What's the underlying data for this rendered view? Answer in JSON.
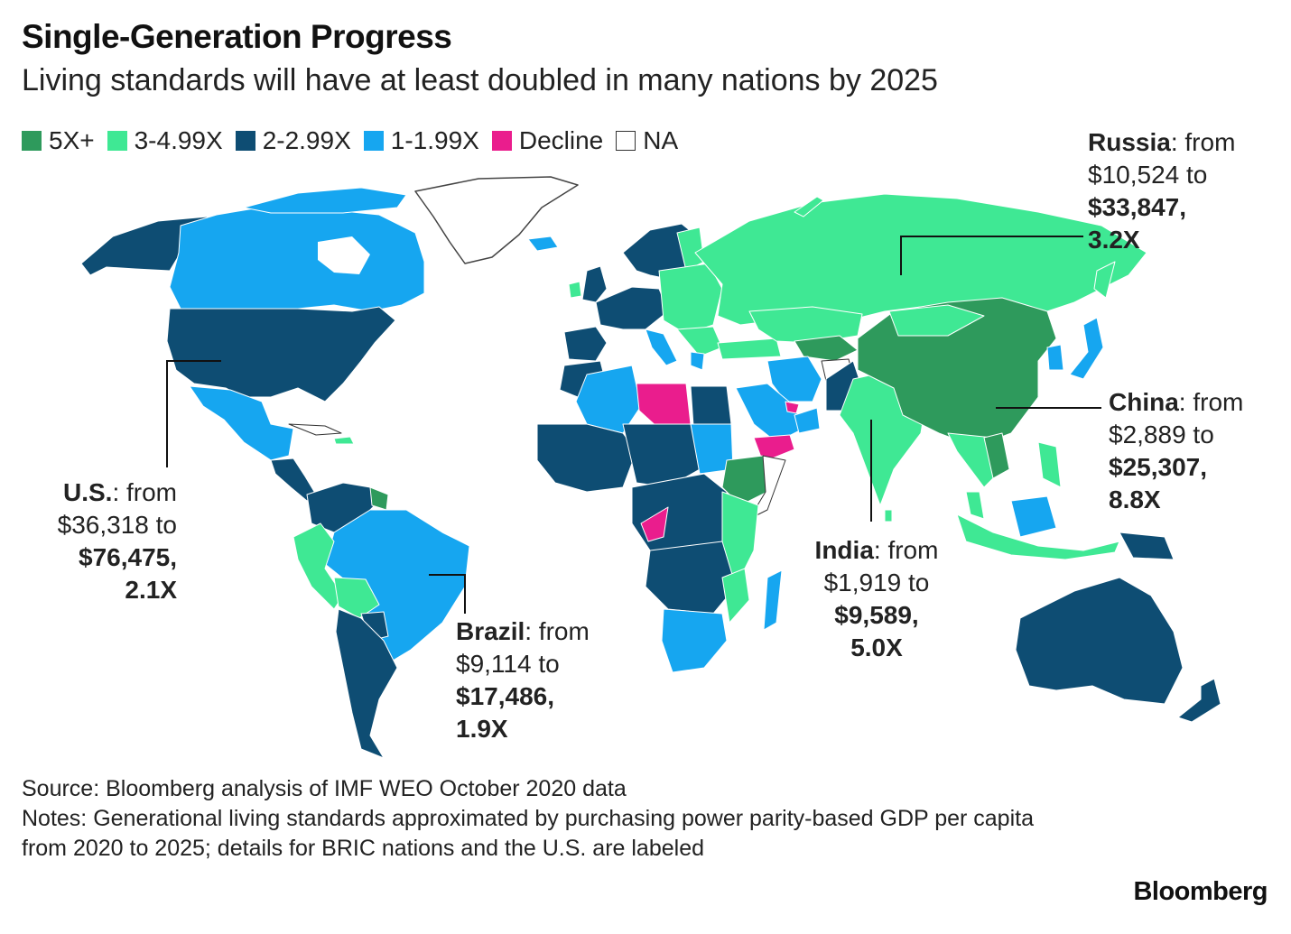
{
  "title": "Single-Generation Progress",
  "subtitle": "Living standards will have at least doubled in many nations by 2025",
  "legend": [
    {
      "label": "5X+",
      "color": "#2e9a5c"
    },
    {
      "label": "3-4.99X",
      "color": "#3fe894"
    },
    {
      "label": "2-2.99X",
      "color": "#0e4d73"
    },
    {
      "label": "1-1.99X",
      "color": "#16a6f0"
    },
    {
      "label": "Decline",
      "color": "#ea1d8d"
    },
    {
      "label": "NA",
      "color": "#ffffff"
    }
  ],
  "callouts": {
    "russia": {
      "name": "Russia",
      "from_text": ": from",
      "from_value": "$10,524 to",
      "to_value": "$33,847,",
      "multiple": "3.2X"
    },
    "china": {
      "name": "China",
      "from_text": ": from",
      "from_value": "$2,889 to",
      "to_value": "$25,307,",
      "multiple": "8.8X"
    },
    "us": {
      "name": "U.S.",
      "from_text": ": from",
      "from_value": "$36,318 to",
      "to_value": "$76,475,",
      "multiple": "2.1X"
    },
    "india": {
      "name": "India",
      "from_text": ": from",
      "from_value": "$1,919 to",
      "to_value": "$9,589,",
      "multiple": "5.0X"
    },
    "brazil": {
      "name": "Brazil",
      "from_text": ": from",
      "from_value": "$9,114 to",
      "to_value": "$17,486,",
      "multiple": "1.9X"
    }
  },
  "footer": {
    "source": "Source: Bloomberg analysis of IMF WEO October 2020 data",
    "notes": "Notes: Generational living standards approximated by purchasing power parity-based GDP per capita from 2020 to 2025; details for BRIC nations and the U.S. are labeled"
  },
  "brand": "Bloomberg"
}
